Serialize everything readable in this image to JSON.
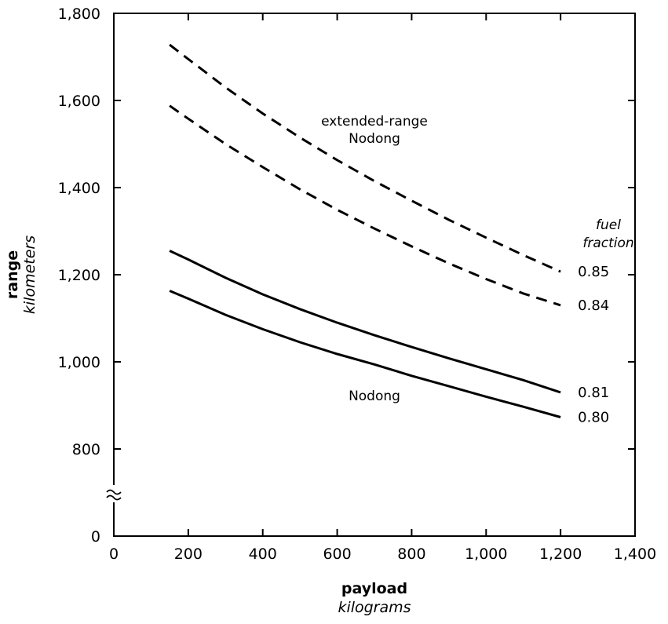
{
  "chart_data": {
    "type": "line",
    "xlabel": "payload",
    "xlabel_sub": "kilograms",
    "ylabel": "range",
    "ylabel_sub": "kilometers",
    "xlim": [
      0,
      1400
    ],
    "ylim": [
      0,
      1800
    ],
    "y_axis_break": true,
    "x_ticks": [
      0,
      200,
      400,
      600,
      800,
      1000,
      1200,
      1400
    ],
    "x_tick_labels": [
      "0",
      "200",
      "400",
      "600",
      "800",
      "1,000",
      "1,200",
      "1,400"
    ],
    "y_ticks": [
      0,
      800,
      1000,
      1200,
      1400,
      1600,
      1800
    ],
    "y_tick_labels": [
      "0",
      "800",
      "1,000",
      "1,200",
      "1,400",
      "1,600",
      "1,800"
    ],
    "grid": false,
    "end_label_title": [
      "fuel",
      "fraction"
    ],
    "series": [
      {
        "name": "0.85",
        "style": "dashed",
        "group": "extended-range Nodong",
        "x": [
          150,
          200,
          300,
          400,
          500,
          600,
          700,
          800,
          900,
          1000,
          1100,
          1200
        ],
        "y": [
          1728,
          1695,
          1630,
          1570,
          1515,
          1463,
          1415,
          1370,
          1326,
          1285,
          1245,
          1207
        ]
      },
      {
        "name": "0.84",
        "style": "dashed",
        "group": "extended-range Nodong",
        "x": [
          150,
          200,
          300,
          400,
          500,
          600,
          700,
          800,
          900,
          1000,
          1100,
          1200
        ],
        "y": [
          1588,
          1558,
          1500,
          1447,
          1396,
          1349,
          1306,
          1265,
          1226,
          1190,
          1157,
          1130
        ]
      },
      {
        "name": "0.81",
        "style": "solid",
        "group": "Nodong",
        "x": [
          150,
          200,
          300,
          400,
          500,
          600,
          700,
          800,
          900,
          1000,
          1100,
          1200
        ],
        "y": [
          1255,
          1235,
          1193,
          1155,
          1121,
          1090,
          1061,
          1034,
          1008,
          983,
          958,
          930
        ]
      },
      {
        "name": "0.80",
        "style": "solid",
        "group": "Nodong",
        "x": [
          150,
          200,
          300,
          400,
          500,
          600,
          700,
          800,
          900,
          1000,
          1100,
          1200
        ],
        "y": [
          1163,
          1145,
          1108,
          1075,
          1045,
          1018,
          994,
          968,
          944,
          920,
          897,
          873
        ]
      }
    ],
    "annotations": [
      {
        "text": [
          "extended-range",
          "Nodong"
        ],
        "x": 650,
        "y": 1600
      },
      {
        "text": [
          "Nodong"
        ],
        "x": 600,
        "y": 1000
      }
    ]
  }
}
